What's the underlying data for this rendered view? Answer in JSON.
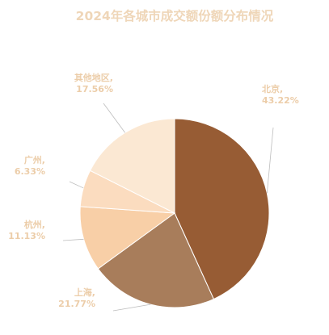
{
  "chart_data": {
    "type": "pie",
    "title": "2024年各城市成交额份额分布情况",
    "unit": "%",
    "slices": [
      {
        "label": "北京",
        "value": 43.22,
        "value_text": "43.22%",
        "color": "#975c34"
      },
      {
        "label": "上海",
        "value": 21.77,
        "value_text": "21.77%",
        "color": "#a87d5b"
      },
      {
        "label": "杭州",
        "value": 11.13,
        "value_text": "11.13%",
        "color": "#f8cfa7"
      },
      {
        "label": "广州",
        "value": 6.33,
        "value_text": "6.33%",
        "color": "#fbdcbf"
      },
      {
        "label": "其他地区",
        "value": 17.56,
        "value_text": "17.56%",
        "color": "#fbe8d3"
      }
    ],
    "start_angle_deg": 0,
    "direction": "clockwise",
    "label_color": "#eccda9",
    "title_color": "#efd6b8",
    "leader_line_color": "#bdbdbd"
  }
}
